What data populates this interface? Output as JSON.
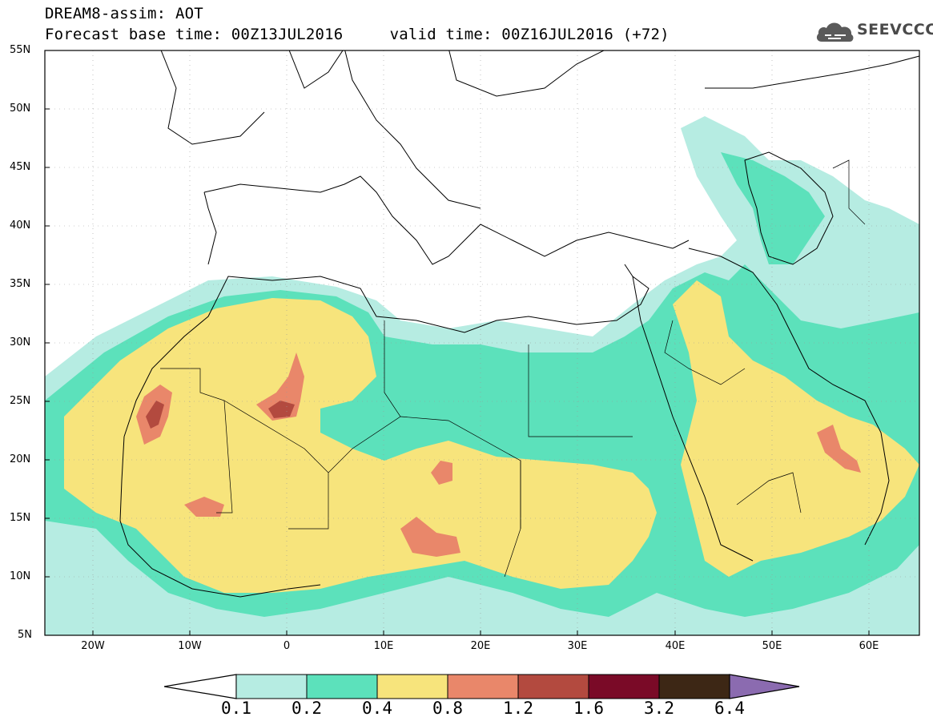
{
  "header": {
    "title_line1": "DREAM8-assim: AOT",
    "title_line2": "Forecast base time: 00Z13JUL2016     valid time: 00Z16JUL2016 (+72)"
  },
  "logo": {
    "text": "SEEVCCC",
    "icon": "cloud-icon"
  },
  "map": {
    "lat_labels": [
      "55N",
      "50N",
      "45N",
      "40N",
      "35N",
      "30N",
      "25N",
      "20N",
      "15N",
      "10N",
      "5N"
    ],
    "lon_labels": [
      "20W",
      "10W",
      "0",
      "10E",
      "20E",
      "30E",
      "40E",
      "50E",
      "60E"
    ],
    "extent": {
      "lon_min": -25,
      "lon_max": 65,
      "lat_min": 5,
      "lat_max": 55
    },
    "field": "AOT"
  },
  "colorbar": {
    "labels": [
      "0.1",
      "0.2",
      "0.4",
      "0.8",
      "1.2",
      "1.6",
      "3.2",
      "6.4"
    ],
    "colors": [
      "#ffffff",
      "#b6ece2",
      "#5ce1bb",
      "#f7e47c",
      "#e9876a",
      "#b34a3f",
      "#7a0a27",
      "#3d2715",
      "#8b6bb0"
    ]
  }
}
